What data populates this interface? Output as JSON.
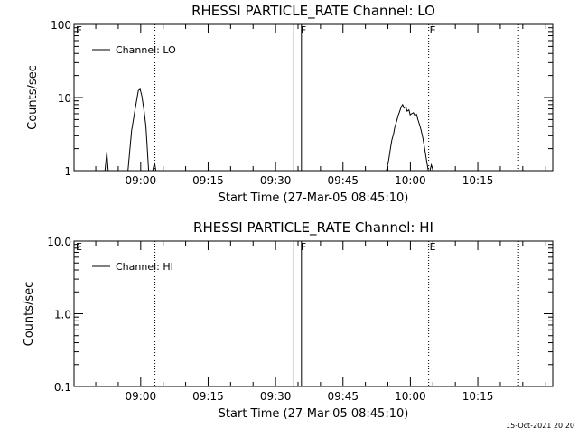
{
  "footer_timestamp": "15-Oct-2021 20:20",
  "chart_data": [
    {
      "type": "line",
      "title": "RHESSI PARTICLE_RATE Channel: LO",
      "xlabel": "Start Time (27-Mar-05 08:45:10)",
      "ylabel": "Counts/sec",
      "yscale": "log",
      "ylim": [
        1,
        100
      ],
      "xlim_minutes_after_start": [
        0,
        106.5
      ],
      "yticks": [
        "1",
        "10",
        "100"
      ],
      "xticks": [
        "09:00",
        "09:15",
        "09:30",
        "09:45",
        "10:00",
        "10:15"
      ],
      "legend": {
        "position": "top-left",
        "label": "Channel: LO"
      },
      "flags": [
        "E",
        "F",
        "E"
      ],
      "series": [
        {
          "name": "Channel: LO",
          "segments": [
            [
              [
                6.9,
                1.0
              ],
              [
                7.3,
                1.8
              ],
              [
                7.6,
                1.0
              ]
            ],
            [
              [
                12.0,
                1.0
              ],
              [
                12.8,
                3.5
              ],
              [
                13.6,
                7.0
              ],
              [
                14.3,
                12.5
              ],
              [
                14.7,
                13.0
              ],
              [
                15.1,
                10.5
              ],
              [
                15.6,
                6.5
              ],
              [
                16.0,
                4.0
              ],
              [
                16.3,
                2.0
              ],
              [
                16.6,
                1.0
              ]
            ],
            [
              [
                17.5,
                1.0
              ],
              [
                17.9,
                1.3
              ],
              [
                18.2,
                1.0
              ]
            ],
            [
              [
                69.5,
                1.0
              ],
              [
                70.0,
                1.4
              ],
              [
                70.4,
                2.0
              ],
              [
                70.7,
                2.6
              ],
              [
                71.1,
                3.2
              ],
              [
                71.4,
                4.0
              ],
              [
                71.8,
                4.8
              ],
              [
                72.1,
                5.6
              ],
              [
                72.5,
                6.6
              ],
              [
                72.8,
                7.5
              ],
              [
                73.1,
                8.0
              ],
              [
                73.4,
                7.2
              ],
              [
                73.8,
                7.5
              ],
              [
                74.1,
                6.5
              ],
              [
                74.5,
                6.8
              ],
              [
                74.8,
                5.8
              ],
              [
                75.1,
                6.0
              ],
              [
                75.5,
                6.2
              ],
              [
                75.8,
                5.7
              ],
              [
                76.2,
                5.9
              ],
              [
                76.5,
                5.0
              ],
              [
                76.9,
                4.2
              ],
              [
                77.2,
                3.6
              ],
              [
                77.6,
                2.8
              ],
              [
                78.0,
                2.0
              ],
              [
                78.4,
                1.4
              ],
              [
                78.8,
                1.0
              ]
            ],
            [
              [
                79.2,
                1.0
              ],
              [
                79.5,
                1.2
              ],
              [
                79.9,
                1.0
              ]
            ]
          ]
        }
      ]
    },
    {
      "type": "line",
      "title": "RHESSI PARTICLE_RATE Channel: HI",
      "xlabel": "Start Time (27-Mar-05 08:45:10)",
      "ylabel": "Counts/sec",
      "yscale": "log",
      "ylim": [
        0.1,
        10
      ],
      "xlim_minutes_after_start": [
        0,
        106.5
      ],
      "yticks": [
        "0.1",
        "1.0",
        "10.0"
      ],
      "xticks": [
        "09:00",
        "09:15",
        "09:30",
        "09:45",
        "10:00",
        "10:15"
      ],
      "legend": {
        "position": "top-left",
        "label": "Channel: HI"
      },
      "flags": [
        "E",
        "F",
        "E"
      ],
      "series": [
        {
          "name": "Channel: HI",
          "segments": []
        }
      ]
    }
  ]
}
